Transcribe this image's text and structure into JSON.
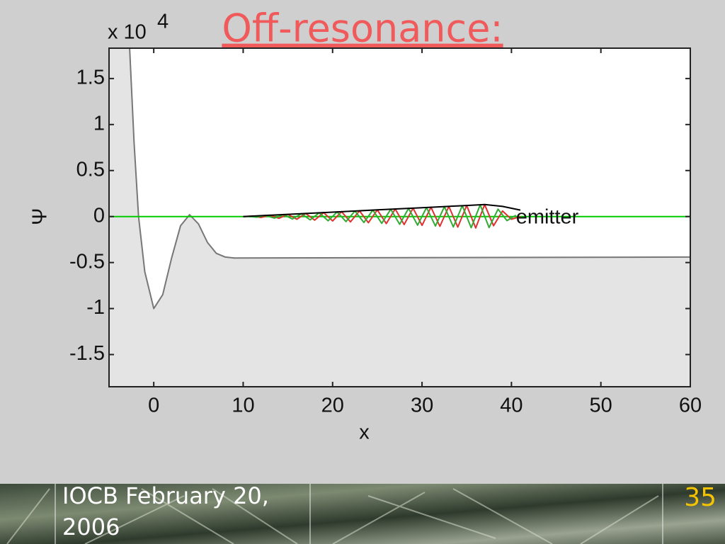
{
  "chart_data": {
    "type": "line",
    "title": "Off-resonance:",
    "title_color": "#f05a5a",
    "x_label": "x",
    "y_label": "Ψ",
    "y_multiplier": "x 10",
    "y_multiplier_exponent": "4",
    "xlim": [
      -5,
      60
    ],
    "ylim": [
      -1.85,
      1.83
    ],
    "xticks": [
      0,
      10,
      20,
      30,
      40,
      50,
      60
    ],
    "yticks": [
      -1.5,
      -1,
      -0.5,
      0,
      0.5,
      1,
      1.5
    ],
    "series": [
      {
        "color": "#777777",
        "fill": "#e4e4e4",
        "x": [
          -2.7,
          -2.2,
          -1.7,
          -1,
          0,
          1,
          2,
          3,
          4,
          5,
          6,
          7,
          8,
          9,
          60
        ],
        "values": [
          1.83,
          0.8,
          0,
          -0.6,
          -1.0,
          -0.85,
          -0.45,
          -0.1,
          0.02,
          -0.08,
          -0.28,
          -0.4,
          -0.44,
          -0.45,
          -0.44
        ]
      },
      {
        "color": "#00cc00",
        "x": [
          -5,
          60
        ],
        "values": [
          0,
          0
        ]
      },
      {
        "color": "#e03030",
        "x": [
          10,
          11,
          12,
          13,
          14,
          15,
          16,
          17,
          18,
          19,
          20,
          21,
          22,
          23,
          24,
          25,
          26,
          27,
          28,
          29,
          30,
          31,
          32,
          33,
          34,
          35,
          36,
          37,
          38,
          39,
          40,
          41
        ],
        "values": [
          0,
          0.005,
          -0.01,
          0.014,
          -0.019,
          0.024,
          -0.029,
          0.034,
          -0.039,
          0.043,
          -0.048,
          0.053,
          -0.058,
          0.062,
          -0.067,
          0.072,
          -0.077,
          0.082,
          -0.087,
          0.091,
          -0.096,
          0.101,
          -0.106,
          0.11,
          -0.115,
          0.12,
          -0.125,
          0.13,
          -0.1,
          0.06,
          -0.03,
          0
        ]
      },
      {
        "color": "#33aa33",
        "x": [
          10.5,
          11.5,
          12.5,
          13.5,
          14.5,
          15.5,
          16.5,
          17.5,
          18.5,
          19.5,
          20.5,
          21.5,
          22.5,
          23.5,
          24.5,
          25.5,
          26.5,
          27.5,
          28.5,
          29.5,
          30.5,
          31.5,
          32.5,
          33.5,
          34.5,
          35.5,
          36.5,
          37.5,
          38.5,
          39.5,
          40.5
        ],
        "values": [
          0.002,
          -0.007,
          0.012,
          -0.017,
          0.022,
          -0.026,
          0.031,
          -0.036,
          0.041,
          -0.046,
          0.05,
          -0.055,
          0.06,
          -0.065,
          0.07,
          -0.074,
          0.079,
          -0.084,
          0.089,
          -0.094,
          0.098,
          -0.103,
          0.108,
          -0.113,
          0.118,
          -0.122,
          0.127,
          -0.12,
          0.08,
          -0.045,
          0.015
        ]
      },
      {
        "color": "#000000",
        "x": [
          10,
          15,
          20,
          25,
          30,
          35,
          37,
          39,
          41
        ],
        "values": [
          0,
          0.024,
          0.048,
          0.072,
          0.096,
          0.12,
          0.13,
          0.11,
          0.07
        ]
      }
    ],
    "annotations": [
      {
        "text": "emitter",
        "x": 40.5,
        "y": 0
      }
    ]
  },
  "footer": {
    "date": "IOCB February 20, 2006",
    "page": "35",
    "page_color": "#f5c400"
  }
}
